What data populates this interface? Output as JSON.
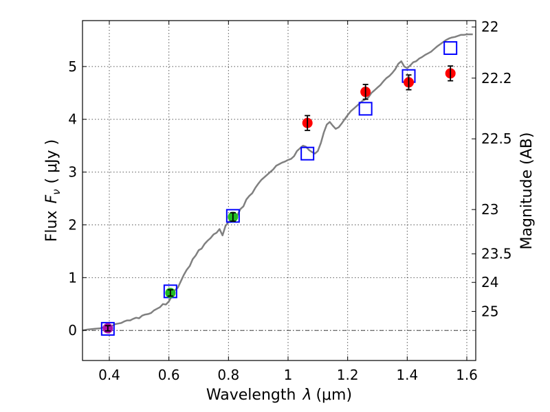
{
  "chart_data": {
    "type": "scatter",
    "xlabel_text": "Wavelength",
    "xlabel_symbol": "λ",
    "xlabel_unit": "(μm)",
    "ylabel_text": "Flux",
    "ylabel_symbol": "F",
    "ylabel_symbol_sub": "ν",
    "ylabel_unit": "( μJy )",
    "y2label": "Magnitude (AB)",
    "xlim": [
      0.31,
      1.63
    ],
    "ylim": [
      -0.57,
      5.87
    ],
    "grid": true,
    "xticks": [
      {
        "v": 0.4,
        "label": "0.4"
      },
      {
        "v": 0.6,
        "label": "0.6"
      },
      {
        "v": 0.8,
        "label": "0.8"
      },
      {
        "v": 1.0,
        "label": "1"
      },
      {
        "v": 1.2,
        "label": "1.2"
      },
      {
        "v": 1.4,
        "label": "1.4"
      },
      {
        "v": 1.6,
        "label": "1.6"
      }
    ],
    "yticks": [
      {
        "v": 0,
        "label": "0"
      },
      {
        "v": 1,
        "label": "1"
      },
      {
        "v": 2,
        "label": "2"
      },
      {
        "v": 3,
        "label": "3"
      },
      {
        "v": 4,
        "label": "4"
      },
      {
        "v": 5,
        "label": "5"
      }
    ],
    "y2ticks": [
      {
        "label": "22",
        "flux": 5.75
      },
      {
        "label": "22.2",
        "flux": 4.78
      },
      {
        "label": "22.5",
        "flux": 3.63
      },
      {
        "label": "23",
        "flux": 2.29
      },
      {
        "label": "23.5",
        "flux": 1.45
      },
      {
        "label": "24",
        "flux": 0.91
      },
      {
        "label": "25",
        "flux": 0.36
      }
    ],
    "series": [
      {
        "name": "model-spectrum",
        "kind": "line",
        "color": "#808080",
        "points": [
          [
            0.31,
            0.0
          ],
          [
            0.33,
            0.02
          ],
          [
            0.35,
            0.03
          ],
          [
            0.37,
            0.04
          ],
          [
            0.38,
            0.06
          ],
          [
            0.39,
            0.05
          ],
          [
            0.4,
            0.07
          ],
          [
            0.41,
            0.09
          ],
          [
            0.42,
            0.12
          ],
          [
            0.43,
            0.13
          ],
          [
            0.44,
            0.14
          ],
          [
            0.45,
            0.17
          ],
          [
            0.46,
            0.19
          ],
          [
            0.47,
            0.19
          ],
          [
            0.48,
            0.22
          ],
          [
            0.49,
            0.24
          ],
          [
            0.5,
            0.23
          ],
          [
            0.51,
            0.28
          ],
          [
            0.52,
            0.3
          ],
          [
            0.53,
            0.31
          ],
          [
            0.54,
            0.33
          ],
          [
            0.55,
            0.38
          ],
          [
            0.56,
            0.41
          ],
          [
            0.57,
            0.44
          ],
          [
            0.58,
            0.5
          ],
          [
            0.59,
            0.49
          ],
          [
            0.6,
            0.55
          ],
          [
            0.61,
            0.65
          ],
          [
            0.62,
            0.76
          ],
          [
            0.63,
            0.81
          ],
          [
            0.64,
            0.93
          ],
          [
            0.65,
            1.05
          ],
          [
            0.66,
            1.15
          ],
          [
            0.67,
            1.22
          ],
          [
            0.68,
            1.35
          ],
          [
            0.69,
            1.42
          ],
          [
            0.7,
            1.52
          ],
          [
            0.71,
            1.55
          ],
          [
            0.72,
            1.64
          ],
          [
            0.73,
            1.7
          ],
          [
            0.74,
            1.75
          ],
          [
            0.75,
            1.82
          ],
          [
            0.76,
            1.85
          ],
          [
            0.77,
            1.92
          ],
          [
            0.78,
            1.8
          ],
          [
            0.79,
            1.98
          ],
          [
            0.8,
            2.05
          ],
          [
            0.81,
            2.12
          ],
          [
            0.82,
            2.2
          ],
          [
            0.83,
            2.18
          ],
          [
            0.84,
            2.3
          ],
          [
            0.85,
            2.35
          ],
          [
            0.86,
            2.48
          ],
          [
            0.87,
            2.55
          ],
          [
            0.88,
            2.6
          ],
          [
            0.89,
            2.7
          ],
          [
            0.9,
            2.78
          ],
          [
            0.91,
            2.85
          ],
          [
            0.92,
            2.9
          ],
          [
            0.93,
            2.95
          ],
          [
            0.94,
            3.0
          ],
          [
            0.95,
            3.05
          ],
          [
            0.96,
            3.12
          ],
          [
            0.97,
            3.15
          ],
          [
            0.98,
            3.18
          ],
          [
            0.99,
            3.2
          ],
          [
            1.0,
            3.23
          ],
          [
            1.01,
            3.25
          ],
          [
            1.02,
            3.3
          ],
          [
            1.03,
            3.4
          ],
          [
            1.04,
            3.45
          ],
          [
            1.05,
            3.5
          ],
          [
            1.06,
            3.48
          ],
          [
            1.07,
            3.42
          ],
          [
            1.08,
            3.38
          ],
          [
            1.09,
            3.35
          ],
          [
            1.1,
            3.4
          ],
          [
            1.11,
            3.55
          ],
          [
            1.12,
            3.75
          ],
          [
            1.13,
            3.9
          ],
          [
            1.14,
            3.95
          ],
          [
            1.15,
            3.88
          ],
          [
            1.16,
            3.82
          ],
          [
            1.17,
            3.85
          ],
          [
            1.18,
            3.92
          ],
          [
            1.19,
            4.0
          ],
          [
            1.2,
            4.08
          ],
          [
            1.21,
            4.15
          ],
          [
            1.22,
            4.2
          ],
          [
            1.23,
            4.25
          ],
          [
            1.24,
            4.3
          ],
          [
            1.25,
            4.35
          ],
          [
            1.26,
            4.38
          ],
          [
            1.27,
            4.42
          ],
          [
            1.28,
            4.5
          ],
          [
            1.29,
            4.55
          ],
          [
            1.3,
            4.6
          ],
          [
            1.31,
            4.65
          ],
          [
            1.32,
            4.72
          ],
          [
            1.33,
            4.78
          ],
          [
            1.34,
            4.82
          ],
          [
            1.35,
            4.88
          ],
          [
            1.36,
            4.95
          ],
          [
            1.37,
            5.05
          ],
          [
            1.38,
            5.1
          ],
          [
            1.39,
            5.0
          ],
          [
            1.4,
            4.97
          ],
          [
            1.41,
            5.02
          ],
          [
            1.42,
            5.08
          ],
          [
            1.43,
            5.1
          ],
          [
            1.44,
            5.15
          ],
          [
            1.45,
            5.18
          ],
          [
            1.46,
            5.22
          ],
          [
            1.47,
            5.25
          ],
          [
            1.48,
            5.28
          ],
          [
            1.49,
            5.33
          ],
          [
            1.5,
            5.38
          ],
          [
            1.51,
            5.42
          ],
          [
            1.52,
            5.46
          ],
          [
            1.53,
            5.5
          ],
          [
            1.54,
            5.53
          ],
          [
            1.55,
            5.55
          ],
          [
            1.56,
            5.56
          ],
          [
            1.57,
            5.58
          ],
          [
            1.58,
            5.6
          ],
          [
            1.59,
            5.6
          ],
          [
            1.6,
            5.61
          ],
          [
            1.61,
            5.61
          ],
          [
            1.62,
            5.61
          ]
        ]
      },
      {
        "name": "model-fluxes",
        "kind": "open-squares",
        "color": "#0000ff",
        "points": [
          [
            0.395,
            0.03
          ],
          [
            0.605,
            0.74
          ],
          [
            0.815,
            2.17
          ],
          [
            1.065,
            3.35
          ],
          [
            1.26,
            4.2
          ],
          [
            1.405,
            4.82
          ],
          [
            1.545,
            5.35
          ]
        ]
      },
      {
        "name": "observed-red",
        "kind": "filled-circles-errorbars",
        "color": "#ff0000",
        "points": [
          {
            "x": 1.065,
            "y": 3.93,
            "err": 0.14
          },
          {
            "x": 1.26,
            "y": 4.52,
            "err": 0.14
          },
          {
            "x": 1.405,
            "y": 4.7,
            "err": 0.14
          },
          {
            "x": 1.545,
            "y": 4.87,
            "err": 0.14
          }
        ]
      },
      {
        "name": "observed-green",
        "kind": "filled-circles-errorbars",
        "color": "#22bb22",
        "points": [
          {
            "x": 0.605,
            "y": 0.71,
            "err": 0.06
          },
          {
            "x": 0.815,
            "y": 2.15,
            "err": 0.08
          }
        ]
      },
      {
        "name": "observed-purple",
        "kind": "filled-circles-errorbars",
        "color": "#aa11aa",
        "points": [
          {
            "x": 0.395,
            "y": 0.04,
            "err": 0.05
          }
        ]
      }
    ],
    "zero_line": {
      "y": 0
    }
  }
}
